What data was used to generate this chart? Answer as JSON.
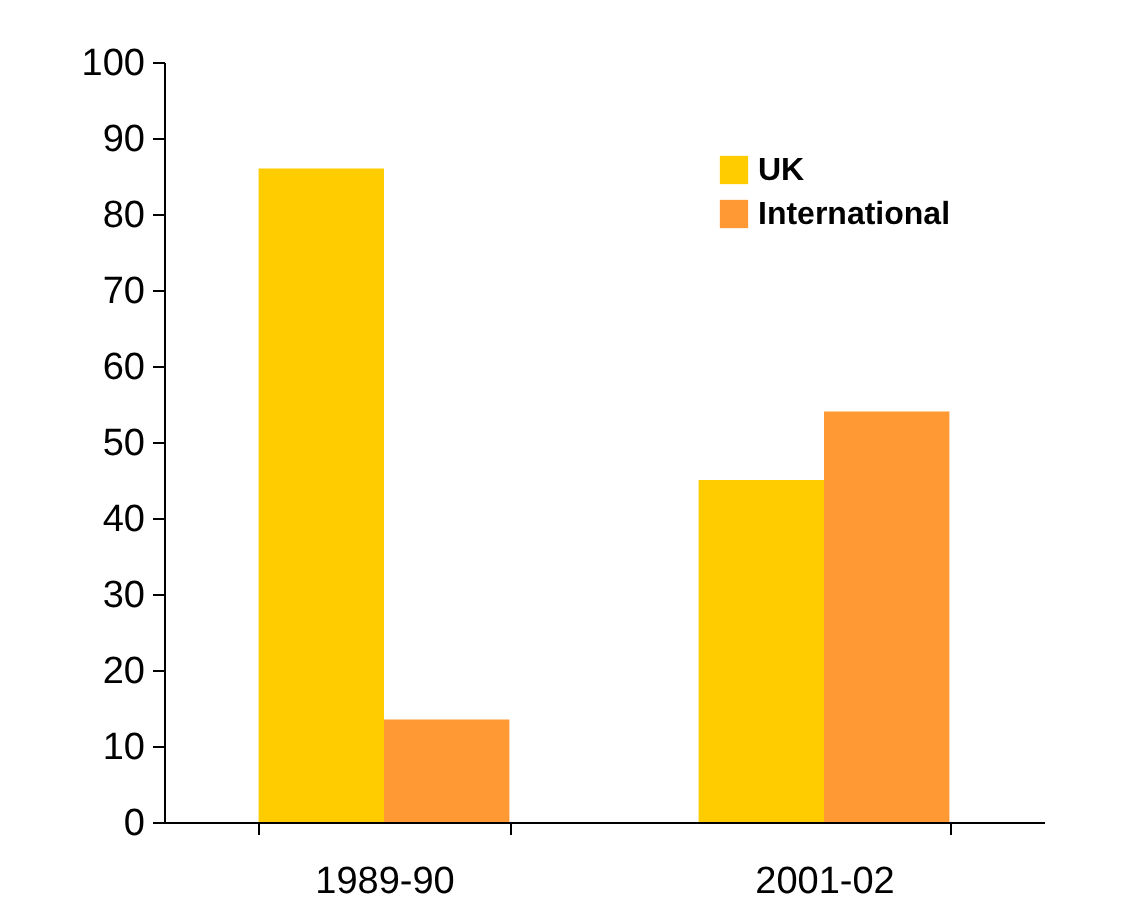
{
  "chart_data": {
    "type": "bar",
    "categories": [
      "1989-90",
      "2001-02"
    ],
    "series": [
      {
        "name": "UK",
        "color": "#ffcc00",
        "values": [
          86,
          45
        ]
      },
      {
        "name": "International",
        "color": "#ff9933",
        "values": [
          13.5,
          54
        ]
      }
    ],
    "ylim": [
      0,
      100
    ],
    "yticks": [
      0,
      10,
      20,
      30,
      40,
      50,
      60,
      70,
      80,
      90,
      100
    ],
    "grid": false,
    "legend": "top right"
  }
}
